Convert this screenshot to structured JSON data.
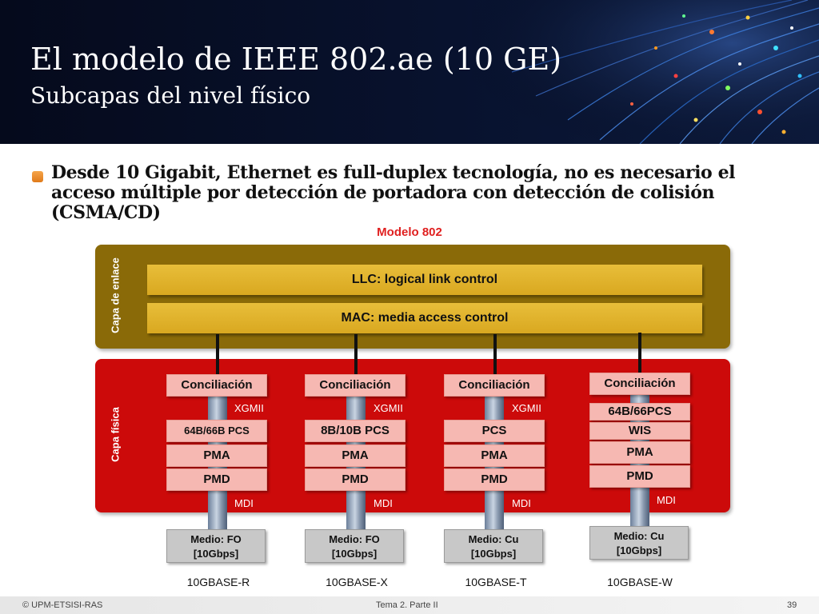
{
  "header": {
    "title": "El modelo de IEEE 802.ae (10 GE)",
    "subtitle": "Subcapas del nivel físico"
  },
  "bullet": {
    "text": "Desde 10 Gigabit, Ethernet es full-duplex tecnología, no es necesario el acceso múltiple por detección de portadora con detección de colisión (CSMA/CD)"
  },
  "diagram": {
    "title": "Modelo 802",
    "link_layer_label": "Capa de enlace",
    "physical_layer_label": "Capa física",
    "llc_label": "LLC: logical link control",
    "mac_label": "MAC: media access control",
    "columns": [
      {
        "reconciliation": "Conciliación",
        "interface": "XGMII",
        "pcs": "64B/66B PCS",
        "pma": "PMA",
        "pmd": "PMD",
        "mdi": "MDI",
        "medio_line1": "Medio: FO",
        "medio_line2": "[10Gbps]",
        "standard": "10GBASE-R"
      },
      {
        "reconciliation": "Conciliación",
        "interface": "XGMII",
        "pcs": "8B/10B PCS",
        "pma": "PMA",
        "pmd": "PMD",
        "mdi": "MDI",
        "medio_line1": "Medio: FO",
        "medio_line2": "[10Gbps]",
        "standard": "10GBASE-X"
      },
      {
        "reconciliation": "Conciliación",
        "interface": "XGMII",
        "pcs": "PCS",
        "pma": "PMA",
        "pmd": "PMD",
        "mdi": "MDI",
        "medio_line1": "Medio: Cu",
        "medio_line2": "[10Gbps]",
        "standard": "10GBASE-T"
      },
      {
        "reconciliation": "Conciliación",
        "pcs": "64B/66PCS",
        "wis": "WIS",
        "pma": "PMA",
        "pmd": "PMD",
        "mdi": "MDI",
        "medio_line1": "Medio: Cu",
        "medio_line2": "[10Gbps]",
        "standard": "10GBASE-W"
      }
    ]
  },
  "footer": {
    "copyright": "© UPM-ETSISI-RAS",
    "center": "Tema 2. Parte II",
    "page": "39"
  },
  "colors": {
    "link_layer": "#8a6a08",
    "physical_layer": "#cc0a0a",
    "bar": "#e0b42e",
    "sublayer_block": "#f6b8b2",
    "title_red": "#e02020",
    "bullet_orange": "#e88a2a"
  }
}
